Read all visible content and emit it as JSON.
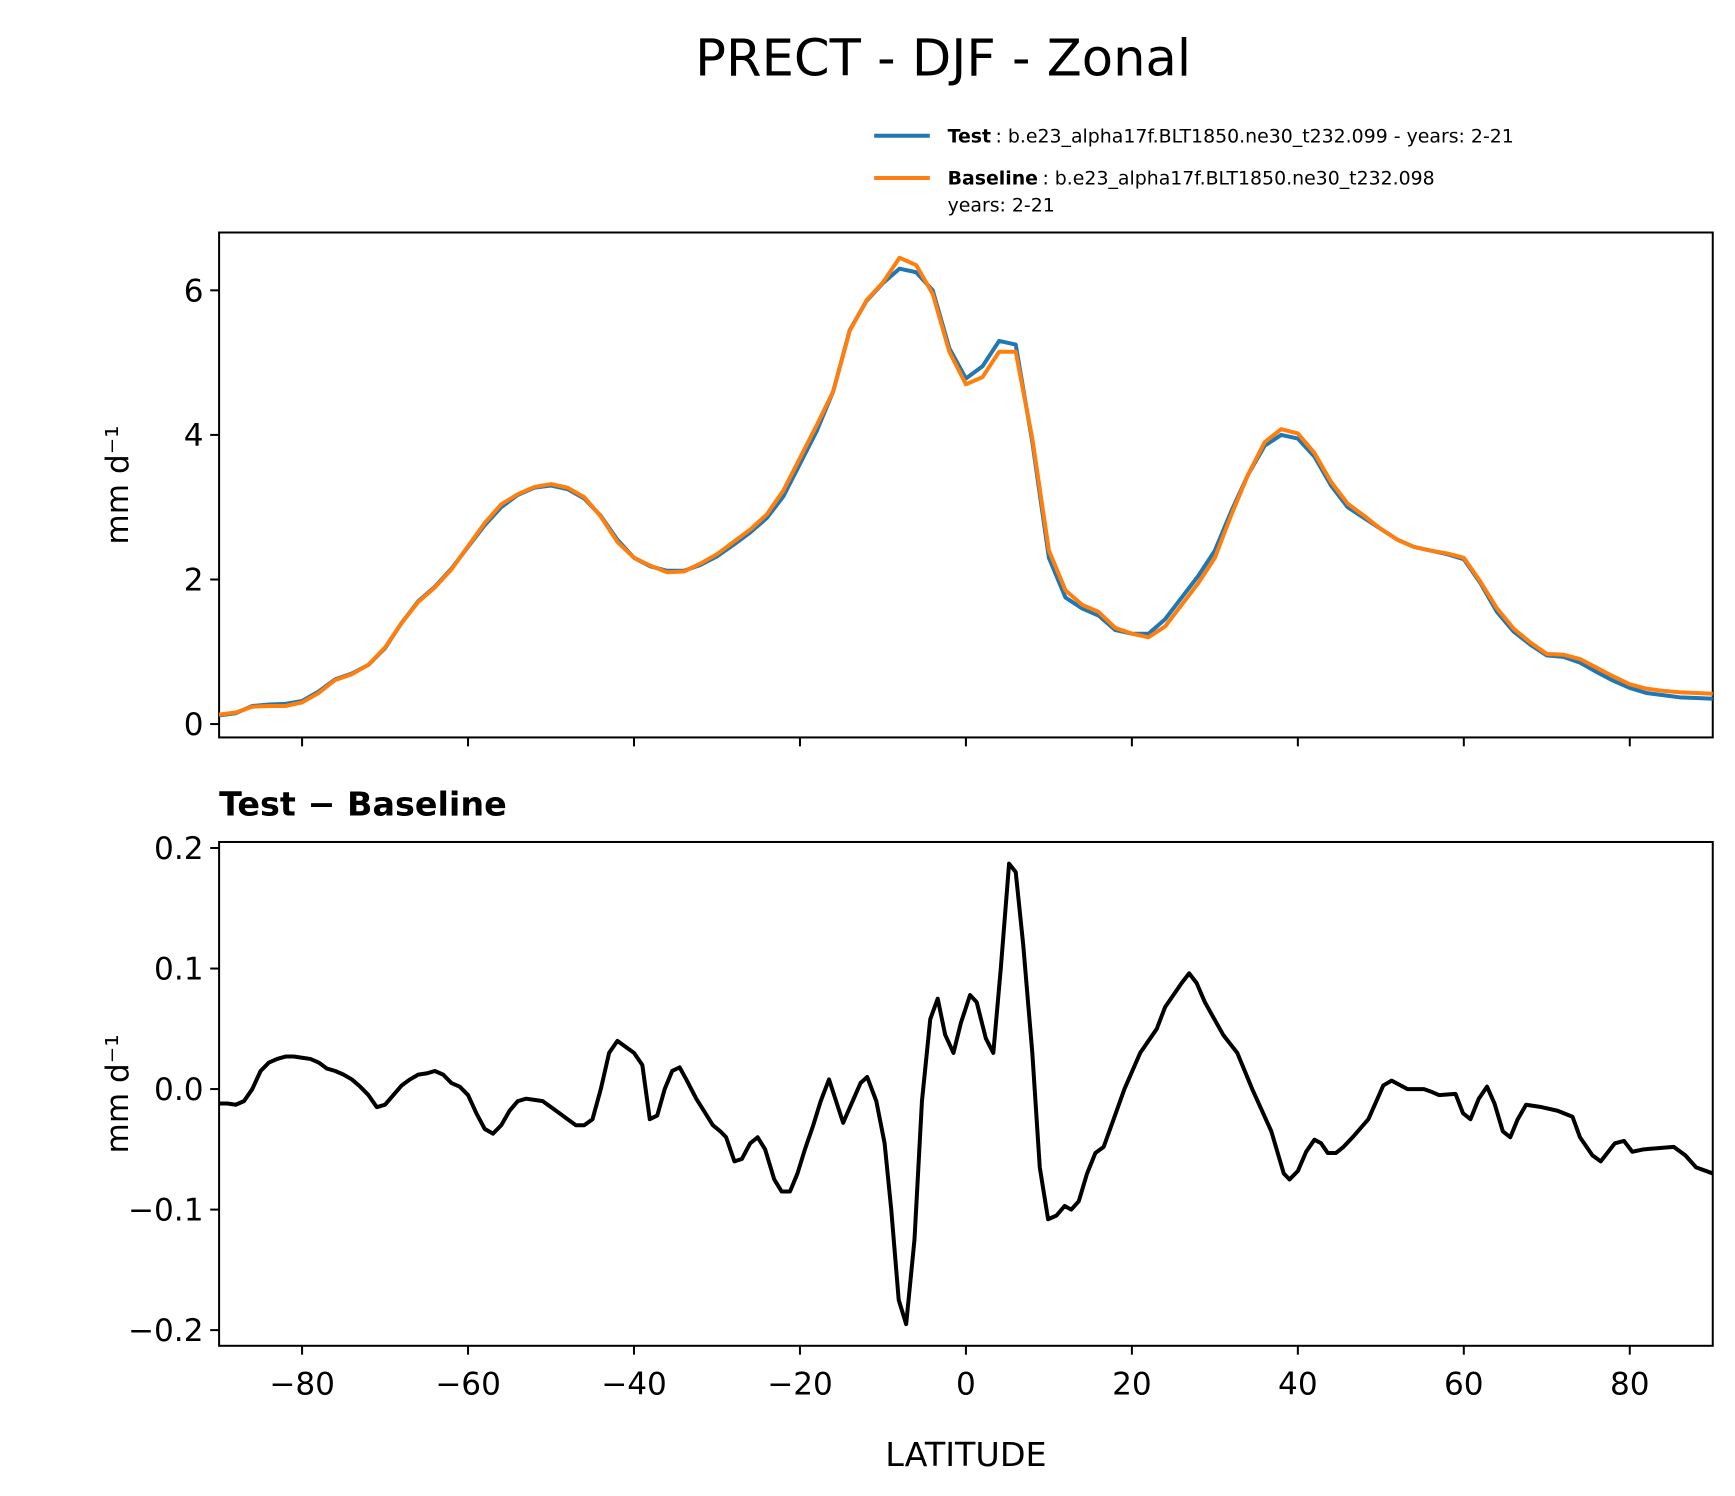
{
  "title": "PRECT - DJF - Zonal",
  "chart_data": [
    {
      "type": "line",
      "x": [
        -90,
        -88,
        -86,
        -84,
        -82,
        -80,
        -78,
        -76,
        -74,
        -72,
        -70,
        -68,
        -66,
        -64,
        -62,
        -60,
        -58,
        -56,
        -54,
        -52,
        -50,
        -48,
        -46,
        -44,
        -42,
        -40,
        -38,
        -36,
        -34,
        -32,
        -30,
        -28,
        -26,
        -24,
        -22,
        -20,
        -18,
        -16,
        -14,
        -12,
        -10,
        -8,
        -6,
        -4,
        -2,
        0,
        2,
        4,
        6,
        8,
        10,
        12,
        14,
        16,
        18,
        20,
        22,
        24,
        26,
        28,
        30,
        32,
        34,
        36,
        38,
        40,
        42,
        44,
        46,
        48,
        50,
        52,
        54,
        56,
        58,
        60,
        62,
        64,
        66,
        68,
        70,
        72,
        74,
        76,
        78,
        80,
        82,
        84,
        86,
        88,
        90
      ],
      "series": [
        {
          "name": "Test",
          "detail": [
            ": b.e23_alpha17f.BLT1850.ne30_t232.099 - years: 2-21"
          ],
          "color": "#1f77b4",
          "values": [
            0.12,
            0.15,
            0.25,
            0.27,
            0.28,
            0.32,
            0.45,
            0.62,
            0.7,
            0.82,
            1.05,
            1.4,
            1.7,
            1.9,
            2.15,
            2.45,
            2.75,
            3.0,
            3.17,
            3.27,
            3.3,
            3.25,
            3.12,
            2.88,
            2.55,
            2.3,
            2.18,
            2.12,
            2.12,
            2.2,
            2.32,
            2.48,
            2.65,
            2.85,
            3.15,
            3.6,
            4.05,
            4.6,
            5.45,
            5.85,
            6.1,
            6.3,
            6.25,
            6.0,
            5.2,
            4.78,
            4.95,
            5.3,
            5.25,
            3.9,
            2.3,
            1.75,
            1.6,
            1.5,
            1.3,
            1.25,
            1.25,
            1.45,
            1.75,
            2.05,
            2.4,
            2.95,
            3.45,
            3.85,
            4.0,
            3.95,
            3.7,
            3.3,
            3.0,
            2.85,
            2.7,
            2.55,
            2.45,
            2.4,
            2.35,
            2.28,
            1.95,
            1.55,
            1.28,
            1.1,
            0.95,
            0.93,
            0.85,
            0.72,
            0.6,
            0.5,
            0.43,
            0.4,
            0.37,
            0.36,
            0.35
          ]
        },
        {
          "name": "Baseline",
          "detail": [
            ": b.e23_alpha17f.BLT1850.ne30_t232.098",
            "years: 2-21"
          ],
          "color": "#ff7f0e",
          "values": [
            0.13,
            0.16,
            0.24,
            0.25,
            0.25,
            0.3,
            0.43,
            0.61,
            0.69,
            0.82,
            1.06,
            1.4,
            1.69,
            1.89,
            2.14,
            2.46,
            2.78,
            3.04,
            3.18,
            3.28,
            3.32,
            3.27,
            3.14,
            2.87,
            2.52,
            2.3,
            2.19,
            2.1,
            2.11,
            2.22,
            2.35,
            2.52,
            2.69,
            2.9,
            3.23,
            3.68,
            4.13,
            4.6,
            5.44,
            5.86,
            6.11,
            6.45,
            6.35,
            5.95,
            5.15,
            4.7,
            4.8,
            5.15,
            5.15,
            3.95,
            2.4,
            1.85,
            1.65,
            1.55,
            1.33,
            1.25,
            1.2,
            1.35,
            1.65,
            1.95,
            2.3,
            2.9,
            3.45,
            3.9,
            4.08,
            4.02,
            3.75,
            3.35,
            3.05,
            2.88,
            2.7,
            2.55,
            2.45,
            2.4,
            2.36,
            2.3,
            1.97,
            1.6,
            1.32,
            1.13,
            0.97,
            0.96,
            0.9,
            0.78,
            0.66,
            0.55,
            0.49,
            0.46,
            0.44,
            0.43,
            0.42
          ]
        }
      ],
      "ylabel": "mm d⁻¹",
      "xlim": [
        -90,
        90
      ],
      "xticks": [
        -80,
        -60,
        -40,
        -20,
        0,
        20,
        40,
        60,
        80
      ],
      "xticklabels": false,
      "ylim": [
        -0.185,
        6.8
      ],
      "yticks": [
        0,
        2,
        4,
        6
      ],
      "legend": "upper right"
    },
    {
      "type": "line",
      "subtitle": "Test − Baseline",
      "color": "#000000",
      "x": [
        -90,
        -89,
        -88,
        -87,
        -86,
        -85,
        -84,
        -83,
        -82,
        -81,
        -80,
        -79,
        -78,
        -77,
        -76,
        -75,
        -74,
        -73,
        -72,
        -71,
        -70,
        -69,
        -68,
        -67,
        -66,
        -65,
        -64,
        -63,
        -62,
        -61,
        -60,
        -59,
        -58,
        -57,
        -56,
        -55,
        -54,
        -53,
        -52,
        -51,
        -50,
        -49,
        -48,
        -47,
        -46,
        -45,
        -44,
        -43,
        -42,
        -41,
        -40,
        -39,
        -38.1,
        -37.2,
        -36.3,
        -35.4,
        -34.5,
        -33.7,
        -32.5,
        -31.4,
        -30.5,
        -29.6,
        -28.9,
        -27.9,
        -27,
        -26,
        -25.1,
        -24.2,
        -23.1,
        -22.2,
        -21.2,
        -20.3,
        -19.4,
        -18.4,
        -17.5,
        -16.5,
        -14.8,
        -12.7,
        -11.9,
        -10.8,
        -9.8,
        -9.0,
        -8.1,
        -7.2,
        -6.2,
        -5.3,
        -4.3,
        -3.4,
        -2.5,
        -1.5,
        -0.6,
        0.5,
        1.3,
        2.4,
        3.3,
        4.2,
        5.2,
        6.0,
        6.9,
        8.0,
        8.9,
        9.9,
        10.9,
        11.9,
        12.7,
        13.6,
        14.6,
        15.6,
        16.6,
        17.8,
        19.1,
        21,
        23,
        24,
        26,
        26.9,
        27.8,
        28.8,
        31,
        32.7,
        34.5,
        36.8,
        38.3,
        39,
        40,
        41,
        42,
        42.8,
        43.6,
        44.6,
        45.5,
        46.6,
        48.5,
        50.3,
        51.3,
        53.2,
        55.2,
        56,
        57,
        59,
        59.9,
        60.8,
        61.8,
        62.8,
        63.7,
        64.7,
        65.6,
        66.5,
        67.5,
        69.4,
        71.3,
        73.1,
        74,
        75.5,
        76.5,
        78.2,
        79.3,
        80.3,
        81.7,
        85.3,
        86.7,
        88,
        90
      ],
      "values": [
        -0.012,
        -0.012,
        -0.013,
        -0.01,
        0.0,
        0.015,
        0.022,
        0.025,
        0.027,
        0.027,
        0.026,
        0.025,
        0.022,
        0.017,
        0.015,
        0.012,
        0.008,
        0.002,
        -0.005,
        -0.015,
        -0.013,
        -0.005,
        0.003,
        0.008,
        0.012,
        0.013,
        0.015,
        0.012,
        0.005,
        0.002,
        -0.005,
        -0.02,
        -0.033,
        -0.037,
        -0.03,
        -0.018,
        -0.01,
        -0.008,
        -0.009,
        -0.01,
        -0.015,
        -0.02,
        -0.025,
        -0.03,
        -0.03,
        -0.025,
        0.0,
        0.03,
        0.04,
        0.035,
        0.03,
        0.02,
        -0.025,
        -0.022,
        0.0,
        0.015,
        0.018,
        0.008,
        -0.008,
        -0.02,
        -0.03,
        -0.035,
        -0.04,
        -0.06,
        -0.058,
        -0.045,
        -0.04,
        -0.05,
        -0.075,
        -0.085,
        -0.085,
        -0.07,
        -0.05,
        -0.03,
        -0.01,
        0.008,
        -0.028,
        0.005,
        0.01,
        -0.01,
        -0.045,
        -0.1,
        -0.175,
        -0.195,
        -0.125,
        -0.01,
        0.058,
        0.075,
        0.045,
        0.03,
        0.055,
        0.078,
        0.072,
        0.042,
        0.03,
        0.1,
        0.187,
        0.18,
        0.12,
        0.03,
        -0.065,
        -0.108,
        -0.105,
        -0.097,
        -0.1,
        -0.093,
        -0.07,
        -0.053,
        -0.048,
        -0.025,
        0.0,
        0.03,
        0.05,
        0.068,
        0.088,
        0.096,
        0.088,
        0.072,
        0.045,
        0.03,
        0.0,
        -0.035,
        -0.07,
        -0.075,
        -0.068,
        -0.052,
        -0.042,
        -0.045,
        -0.053,
        -0.053,
        -0.048,
        -0.04,
        -0.025,
        0.003,
        0.007,
        0.0,
        0.0,
        -0.002,
        -0.005,
        -0.004,
        -0.02,
        -0.025,
        -0.008,
        0.002,
        -0.012,
        -0.035,
        -0.04,
        -0.025,
        -0.013,
        -0.015,
        -0.018,
        -0.023,
        -0.04,
        -0.055,
        -0.06,
        -0.045,
        -0.043,
        -0.052,
        -0.05,
        -0.048,
        -0.055,
        -0.065,
        -0.07
      ],
      "xlabel": "LATITUDE",
      "ylabel": "mm d⁻¹",
      "xlim": [
        -90,
        90
      ],
      "xticks": [
        {
          "value": -80,
          "label": "−80"
        },
        {
          "value": -60,
          "label": "−60"
        },
        {
          "value": -40,
          "label": "−40"
        },
        {
          "value": -20,
          "label": "−20"
        },
        0,
        20,
        40,
        60,
        80
      ],
      "xticklabels": true,
      "ylim": [
        -0.213,
        0.205
      ],
      "yticks": [
        {
          "value": 0.2,
          "label": "0.2"
        },
        {
          "value": 0.1,
          "label": "0.1"
        },
        {
          "value": 0,
          "label": "0.0"
        },
        {
          "value": -0.1,
          "label": "−0.1"
        },
        {
          "value": -0.2,
          "label": "−0.2"
        }
      ]
    }
  ]
}
